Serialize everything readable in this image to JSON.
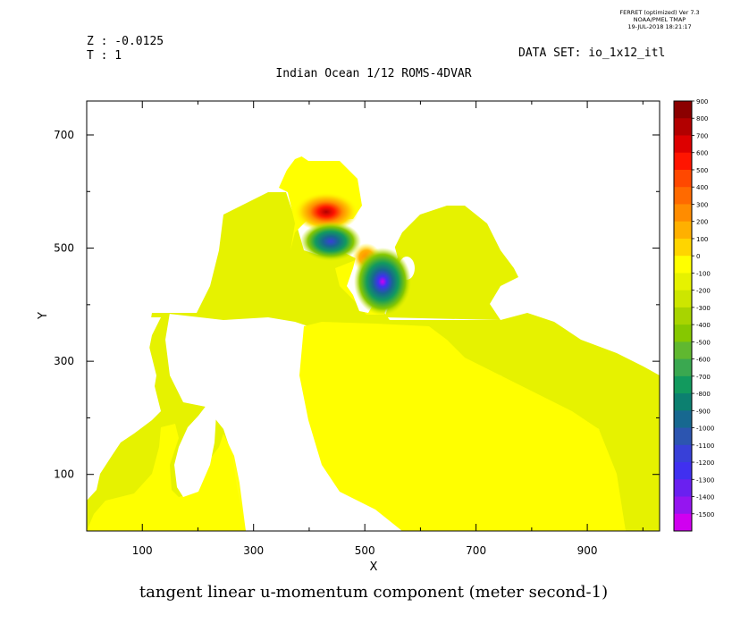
{
  "header": {
    "ferret_lines": [
      "FERRET (optimized) Ver 7.3",
      "NOAA/PMEL TMAP",
      "19-JUL-2018 18:21:17"
    ],
    "z_label": "Z : -0.0125",
    "t_label": "T : 1",
    "dataset": "DATA SET: io_1x12_itl",
    "subtitle": "Indian Ocean 1/12 ROMS-4DVAR"
  },
  "chart_data": {
    "type": "heatmap",
    "title": "tangent linear u-momentum component (meter second-1)",
    "xlabel": "X",
    "ylabel": "Y",
    "xlim": [
      0,
      1030
    ],
    "ylim": [
      0,
      760
    ],
    "xticks": [
      100,
      300,
      500,
      700,
      900
    ],
    "xminorticks": [
      200,
      400,
      600,
      800,
      1000
    ],
    "yticks": [
      100,
      300,
      500,
      700
    ],
    "yminorticks": [
      200,
      400,
      600
    ],
    "colorbar": {
      "labels": [
        "900",
        "800",
        "700",
        "600",
        "500",
        "400",
        "300",
        "200",
        "100",
        "0",
        "-100",
        "-200",
        "-300",
        "-400",
        "-500",
        "-600",
        "-700",
        "-800",
        "-900",
        "-1000",
        "-1100",
        "-1200",
        "-1300",
        "-1400",
        "-1500"
      ],
      "colors": [
        "#8b0000",
        "#b20000",
        "#dd0000",
        "#ff1500",
        "#ff4800",
        "#ff6a00",
        "#ff8c00",
        "#ffb000",
        "#ffd500",
        "#ffff00",
        "#e6f200",
        "#cde600",
        "#a8d400",
        "#86c800",
        "#60b830",
        "#3aa850",
        "#129a5e",
        "#0c8070",
        "#176890",
        "#2c55b0",
        "#3840d8",
        "#4030f0",
        "#6a20f0",
        "#9515f0",
        "#d000f0"
      ]
    },
    "features": [
      {
        "kind": "positive_anomaly",
        "x": 455,
        "y": 560,
        "peak": 900
      },
      {
        "kind": "negative_anomaly",
        "x": 460,
        "y": 510,
        "peak": -1200
      },
      {
        "kind": "positive_anomaly",
        "x": 535,
        "y": 480,
        "peak": 250
      },
      {
        "kind": "negative_anomaly",
        "x": 560,
        "y": 440,
        "peak": -1500
      }
    ]
  }
}
